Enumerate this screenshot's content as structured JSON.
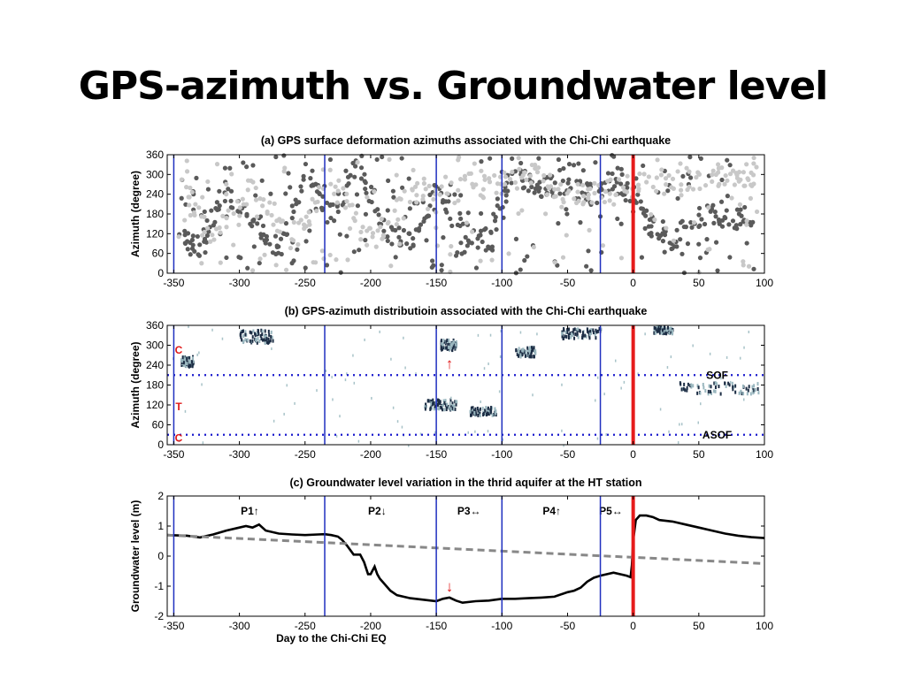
{
  "slide_title": "GPS-azimuth vs. Groundwater level",
  "chart_data": [
    {
      "type": "scatter",
      "title": "(a) GPS surface deformation azimuths associated with the Chi-Chi earthquake",
      "xlabel": "",
      "ylabel": "Azimuth (degree)",
      "xlim": [
        -355,
        100
      ],
      "ylim": [
        0,
        360
      ],
      "x_ticks": [
        "-350",
        "-300",
        "-250",
        "-200",
        "-150",
        "-100",
        "-50",
        "0",
        "50",
        "100"
      ],
      "y_ticks": [
        "0",
        "60",
        "120",
        "180",
        "240",
        "300",
        "360"
      ],
      "period_boundaries": [
        -350,
        -235,
        -150,
        -100,
        -25
      ],
      "earthquake_day": 0,
      "series": [
        {
          "color": "#5a5a5a",
          "values": [
            [
              -345,
              105
            ],
            [
              -330,
              85
            ],
            [
              -310,
              240
            ],
            [
              -290,
              150
            ],
            [
              -270,
              70
            ],
            [
              -250,
              300
            ],
            [
              -230,
              190
            ],
            [
              -210,
              340
            ],
            [
              -190,
              120
            ],
            [
              -170,
              90
            ],
            [
              -150,
              260
            ],
            [
              -130,
              120
            ],
            [
              -110,
              100
            ],
            [
              -90,
              320
            ],
            [
              -70,
              250
            ],
            [
              -50,
              290
            ],
            [
              -30,
              240
            ],
            [
              -10,
              300
            ],
            [
              10,
              160
            ],
            [
              30,
              90
            ],
            [
              50,
              180
            ],
            [
              70,
              170
            ],
            [
              90,
              170
            ]
          ]
        },
        {
          "color": "#c8c8c8",
          "values": [
            [
              -345,
              280
            ],
            [
              -320,
              110
            ],
            [
              -290,
              260
            ],
            [
              -260,
              100
            ],
            [
              -230,
              280
            ],
            [
              -200,
              95
            ],
            [
              -170,
              230
            ],
            [
              -140,
              280
            ],
            [
              -110,
              260
            ],
            [
              -80,
              300
            ],
            [
              -50,
              240
            ],
            [
              -20,
              250
            ],
            [
              20,
              280
            ],
            [
              50,
              290
            ],
            [
              80,
              300
            ],
            [
              95,
              300
            ]
          ]
        }
      ]
    },
    {
      "type": "heatmap",
      "title": "(b) GPS-azimuth distributioin associated with the Chi-Chi earthquake",
      "xlabel": "",
      "ylabel": "Azimuth (degree)",
      "xlim": [
        -355,
        100
      ],
      "ylim": [
        0,
        360
      ],
      "x_ticks": [
        "-350",
        "-300",
        "-250",
        "-200",
        "-150",
        "-100",
        "-50",
        "0",
        "50",
        "100"
      ],
      "y_ticks": [
        "0",
        "60",
        "120",
        "180",
        "240",
        "300",
        "360"
      ],
      "period_boundaries": [
        -350,
        -235,
        -150,
        -100,
        -25
      ],
      "earthquake_day": 0,
      "reference_lines": [
        {
          "label": "SOF",
          "y": 210
        },
        {
          "label": "ASOF",
          "y": 30
        }
      ],
      "side_labels": [
        {
          "text": "C",
          "y": 285
        },
        {
          "text": "T",
          "y": 115
        },
        {
          "text": "C",
          "y": 20
        }
      ],
      "arrow": {
        "symbol": "↑",
        "x": -140,
        "y": 245
      },
      "clusters": [
        {
          "x0": -300,
          "x1": -275,
          "y": 325,
          "spread": 20
        },
        {
          "x0": -345,
          "x1": -335,
          "y": 250,
          "spread": 15
        },
        {
          "x0": -148,
          "x1": -135,
          "y": 300,
          "spread": 15
        },
        {
          "x0": -160,
          "x1": -135,
          "y": 120,
          "spread": 15
        },
        {
          "x0": -125,
          "x1": -105,
          "y": 100,
          "spread": 12
        },
        {
          "x0": -90,
          "x1": -75,
          "y": 280,
          "spread": 15
        },
        {
          "x0": -55,
          "x1": -25,
          "y": 335,
          "spread": 15
        },
        {
          "x0": 15,
          "x1": 30,
          "y": 345,
          "spread": 10
        },
        {
          "x0": 35,
          "x1": 95,
          "y": 170,
          "spread": 18
        }
      ]
    },
    {
      "type": "line",
      "title": "(c) Groundwater level variation in the thrid aquifer at the HT station",
      "xlabel": "Day to the Chi-Chi EQ",
      "ylabel": "Groundwater level (m)",
      "xlim": [
        -355,
        100
      ],
      "ylim": [
        -2,
        2
      ],
      "x_ticks": [
        "-350",
        "-300",
        "-250",
        "-200",
        "-150",
        "-100",
        "-50",
        "0",
        "50",
        "100"
      ],
      "y_ticks": [
        "-2",
        "-1",
        "0",
        "1",
        "2"
      ],
      "period_boundaries": [
        -350,
        -235,
        -150,
        -100,
        -25
      ],
      "earthquake_day": 0,
      "period_labels": [
        {
          "text": "P1↑",
          "x": -292
        },
        {
          "text": "P2↓",
          "x": -195
        },
        {
          "text": "P3↔",
          "x": -125
        },
        {
          "text": "P4↑",
          "x": -62
        },
        {
          "text": "P5↔",
          "x": -17
        }
      ],
      "arrow": {
        "symbol": "↓",
        "x": -140,
        "y": -1.0
      },
      "series": [
        {
          "color": "#000000",
          "style": "solid",
          "x": [
            -355,
            -340,
            -330,
            -320,
            -310,
            -300,
            -295,
            -290,
            -285,
            -280,
            -270,
            -260,
            -250,
            -240,
            -235,
            -230,
            -225,
            -222,
            -218,
            -213,
            -208,
            -205,
            -202,
            -200,
            -197,
            -195,
            -193,
            -190,
            -185,
            -180,
            -170,
            -160,
            -150,
            -145,
            -140,
            -135,
            -130,
            -120,
            -110,
            -100,
            -90,
            -80,
            -70,
            -60,
            -50,
            -45,
            -40,
            -35,
            -30,
            -25,
            -15,
            -5,
            -2,
            -1,
            0,
            2,
            5,
            10,
            15,
            20,
            30,
            40,
            50,
            60,
            70,
            80,
            90,
            100
          ],
          "y": [
            0.7,
            0.68,
            0.62,
            0.72,
            0.85,
            0.95,
            1.0,
            0.95,
            1.05,
            0.85,
            0.75,
            0.72,
            0.7,
            0.72,
            0.73,
            0.7,
            0.65,
            0.55,
            0.35,
            0.05,
            0.05,
            -0.2,
            -0.6,
            -0.6,
            -0.35,
            -0.6,
            -0.75,
            -0.9,
            -1.15,
            -1.3,
            -1.4,
            -1.45,
            -1.5,
            -1.42,
            -1.38,
            -1.48,
            -1.55,
            -1.5,
            -1.48,
            -1.42,
            -1.42,
            -1.4,
            -1.38,
            -1.35,
            -1.2,
            -1.15,
            -1.05,
            -0.85,
            -0.72,
            -0.65,
            -0.55,
            -0.65,
            -0.7,
            -0.3,
            0.5,
            1.2,
            1.35,
            1.35,
            1.3,
            1.2,
            1.15,
            1.05,
            0.95,
            0.85,
            0.75,
            0.68,
            0.63,
            0.6
          ]
        },
        {
          "color": "#888888",
          "style": "dashed",
          "x": [
            -355,
            100
          ],
          "y": [
            0.7,
            -0.25
          ]
        }
      ]
    }
  ]
}
